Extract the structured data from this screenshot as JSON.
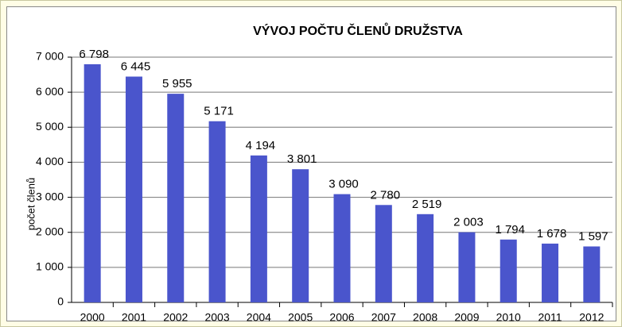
{
  "chart_data": {
    "type": "bar",
    "title": "VÝVOJ POČTU ČLENŮ DRUŽSTVA",
    "y_label": "počet členů",
    "categories": [
      "2000",
      "2001",
      "2002",
      "2003",
      "2004",
      "2005",
      "2006",
      "2007",
      "2008",
      "2009",
      "2010",
      "2011",
      "2012"
    ],
    "values": [
      6798,
      6445,
      5955,
      5171,
      4194,
      3801,
      3090,
      2780,
      2519,
      2003,
      1794,
      1678,
      1597
    ],
    "value_labels": [
      "6 798",
      "6 445",
      "5 955",
      "5 171",
      "4 194",
      "3 801",
      "3 090",
      "2 780",
      "2 519",
      "2 003",
      "1 794",
      "1 678",
      "1 597"
    ],
    "color": "#4a55cc",
    "ylim": [
      0,
      7000
    ],
    "yticks": [
      0,
      {
        "value": 1000,
        "label": "1 000"
      },
      {
        "value": 2000,
        "label": "2 000"
      },
      {
        "value": 3000,
        "label": "3 000"
      },
      {
        "value": 4000,
        "label": "4 000"
      },
      {
        "value": 5000,
        "label": "5 000"
      },
      {
        "value": 6000,
        "label": "6 000"
      },
      {
        "value": 7000,
        "label": "7 000"
      }
    ],
    "grid": true
  }
}
